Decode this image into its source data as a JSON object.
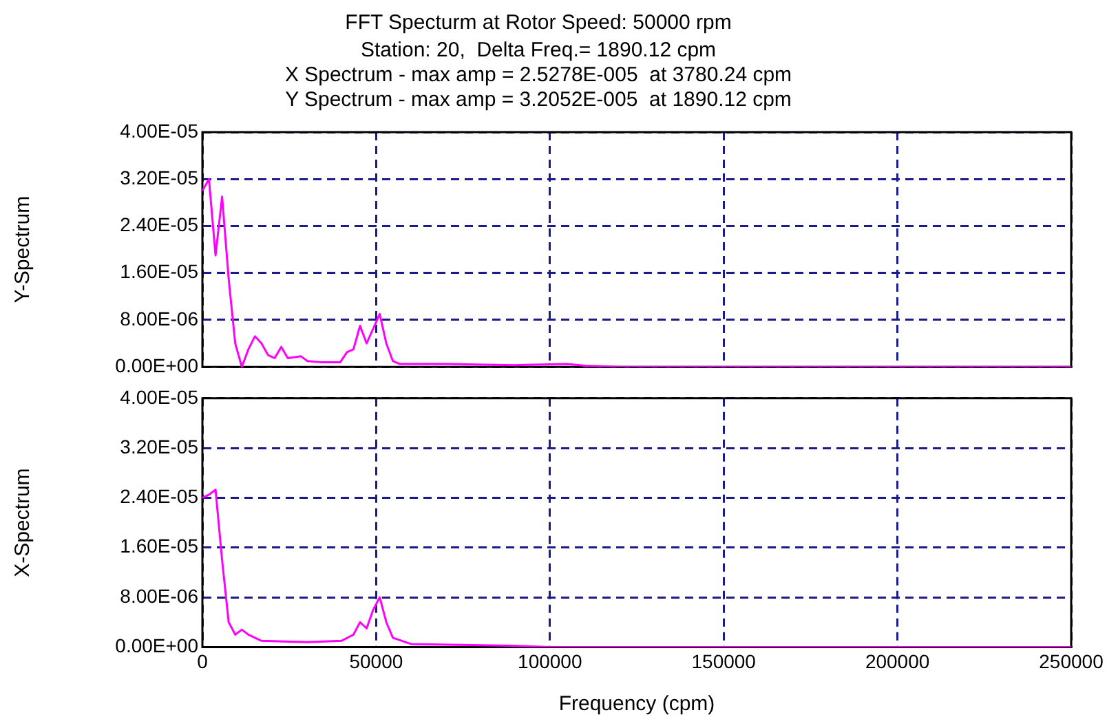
{
  "chart_data": [
    {
      "type": "line",
      "title": "FFT Specturm at Rotor Speed: 50000 rpm",
      "subtitle": "Station: 20,  Delta Freq.= 1890.12 cpm",
      "annotations": [
        "X Spectrum - max amp = 2.5278E-005  at 3780.24 cpm",
        "Y Spectrum - max amp = 3.2052E-005  at 1890.12 cpm"
      ],
      "ylabel": "Y-Spectrum",
      "x": [
        0,
        1890,
        3780,
        5670,
        7560,
        9450,
        11340,
        13230,
        15120,
        17010,
        18900,
        20790,
        22680,
        24570,
        28350,
        30240,
        34020,
        39690,
        41580,
        43470,
        45360,
        47250,
        49140,
        51030,
        52920,
        54810,
        56700,
        70000,
        90000,
        105000,
        110000,
        120000,
        250000
      ],
      "series": [
        {
          "color": "#ff00ff",
          "values": [
            3e-05,
            3.2e-05,
            1.9e-05,
            2.9e-05,
            1.5e-05,
            4e-06,
            0,
            3e-06,
            5.2e-06,
            4e-06,
            2e-06,
            1.5e-06,
            3.4e-06,
            1.5e-06,
            1.8e-06,
            1e-06,
            8e-07,
            8e-07,
            2.5e-06,
            3e-06,
            7e-06,
            4e-06,
            6.5e-06,
            9e-06,
            4e-06,
            1e-06,
            5e-07,
            5e-07,
            3e-07,
            5e-07,
            2e-07,
            0,
            0
          ]
        }
      ],
      "xlim": [
        0,
        250000
      ],
      "xticks": [
        0,
        50000,
        100000,
        150000,
        200000,
        250000
      ],
      "ylim": [
        0,
        4e-05
      ],
      "yticks": [
        {
          "value": 0,
          "label": "0.00E+00"
        },
        {
          "value": 8e-06,
          "label": "8.00E-06"
        },
        {
          "value": 1.6e-05,
          "label": "1.60E-05"
        },
        {
          "value": 2.4e-05,
          "label": "2.40E-05"
        },
        {
          "value": 3.2e-05,
          "label": "3.20E-05"
        },
        {
          "value": 4e-05,
          "label": "4.00E-05"
        }
      ],
      "grid": true,
      "legend": false,
      "marker": "none",
      "line_style": "solid",
      "tick_labels": "y"
    },
    {
      "type": "line",
      "ylabel": "X-Spectrum",
      "xlabel": "Frequency (cpm)",
      "x": [
        0,
        1890,
        3780,
        5670,
        7560,
        9450,
        11340,
        13230,
        17010,
        30000,
        40000,
        43470,
        45360,
        47250,
        49140,
        51030,
        52920,
        54810,
        60000,
        80000,
        90000,
        100000,
        250000
      ],
      "series": [
        {
          "color": "#ff00ff",
          "values": [
            2.4e-05,
            2.45e-05,
            2.53e-05,
            1.4e-05,
            4e-06,
            2e-06,
            2.8e-06,
            2e-06,
            1e-06,
            8e-07,
            1e-06,
            2e-06,
            4e-06,
            3e-06,
            6e-06,
            8e-06,
            4e-06,
            1.5e-06,
            5e-07,
            3e-07,
            2e-07,
            0,
            0
          ]
        }
      ],
      "xlim": [
        0,
        250000
      ],
      "xticks": [
        0,
        50000,
        100000,
        150000,
        200000,
        250000
      ],
      "ylim": [
        0,
        4e-05
      ],
      "yticks": [
        {
          "value": 0,
          "label": "0.00E+00"
        },
        {
          "value": 8e-06,
          "label": "8.00E-06"
        },
        {
          "value": 1.6e-05,
          "label": "1.60E-05"
        },
        {
          "value": 2.4e-05,
          "label": "2.40E-05"
        },
        {
          "value": 3.2e-05,
          "label": "3.20E-05"
        },
        {
          "value": 4e-05,
          "label": "4.00E-05"
        }
      ],
      "grid": true,
      "legend": false,
      "marker": "none",
      "line_style": "solid"
    }
  ]
}
